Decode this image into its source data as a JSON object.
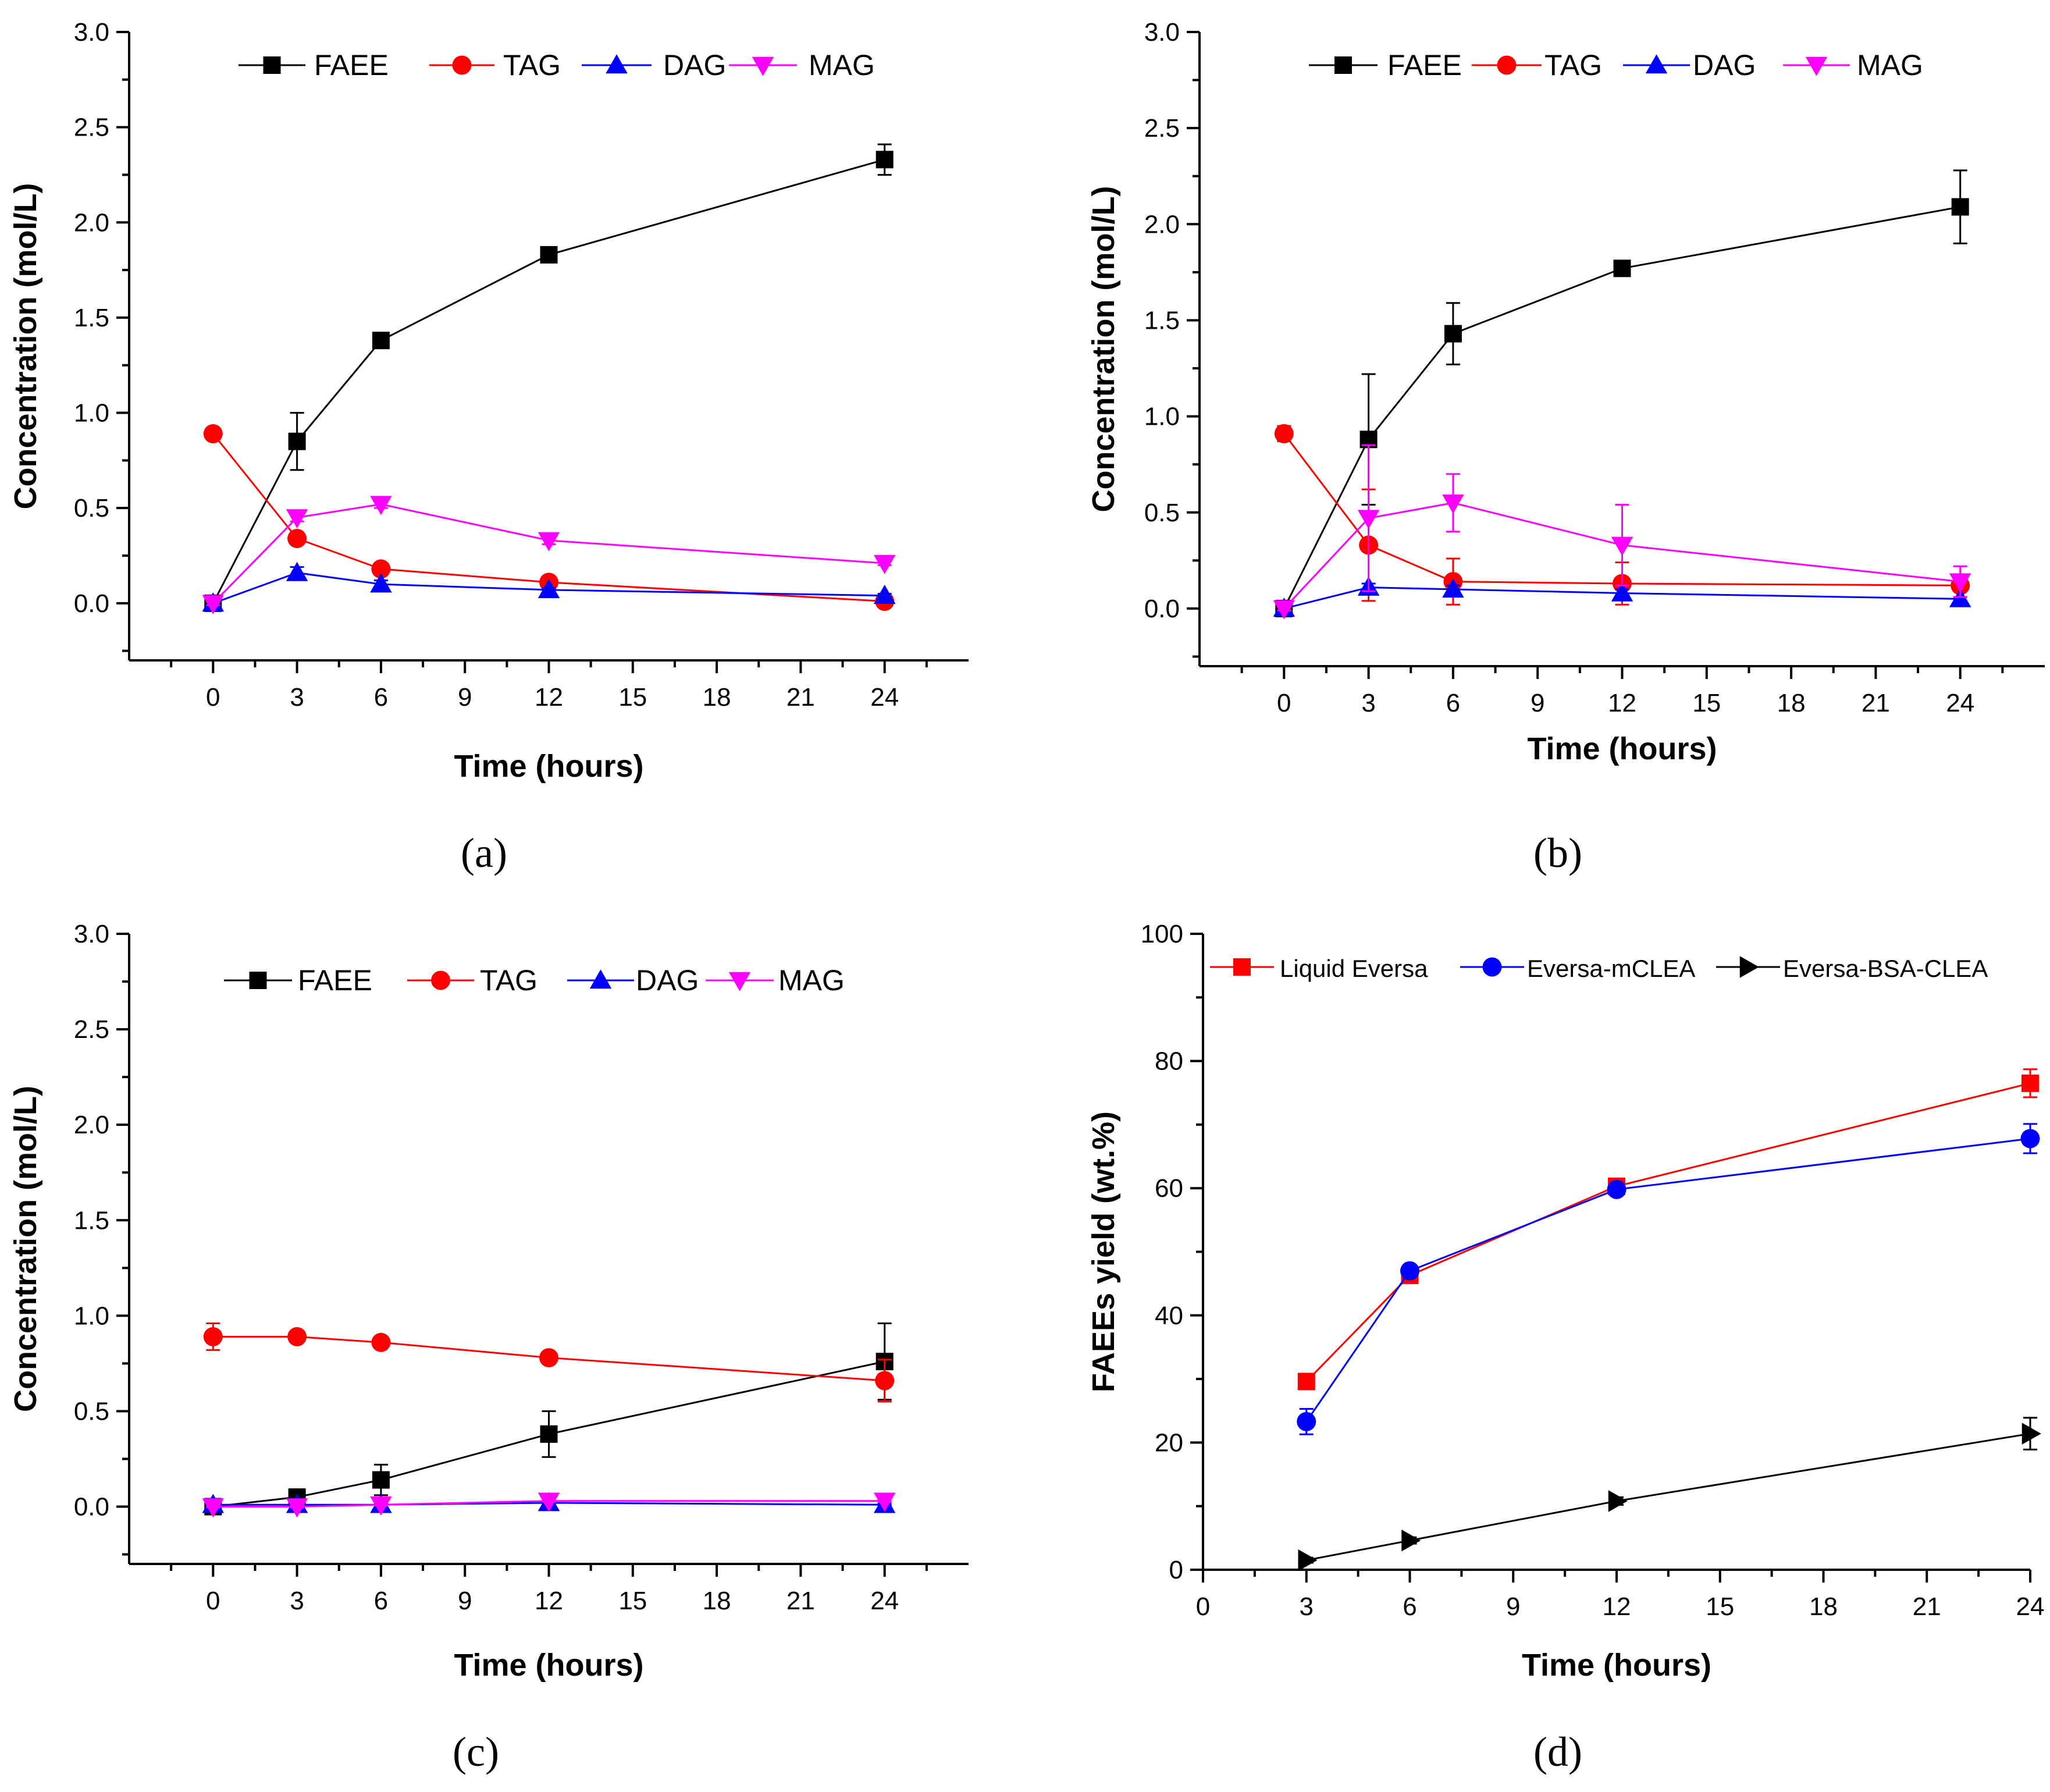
{
  "chart_data": [
    {
      "id": "a",
      "type": "line",
      "caption": "(a)",
      "xlabel": "Time (hours)",
      "ylabel": "Concentration (mol/L)",
      "xlim": [
        -3,
        27
      ],
      "ylim": [
        -0.3,
        3.0
      ],
      "xticks": [
        0,
        3,
        6,
        9,
        12,
        15,
        18,
        21,
        24
      ],
      "yticks": [
        0.0,
        0.5,
        1.0,
        1.5,
        2.0,
        2.5,
        3.0
      ],
      "ytick_labels": [
        "0.0",
        "0.5",
        "1.0",
        "1.5",
        "2.0",
        "2.5",
        "3.0"
      ],
      "x": [
        0,
        3,
        6,
        12,
        24
      ],
      "series": [
        {
          "name": "FAEE",
          "color": "#000000",
          "marker": "square",
          "values": [
            0.0,
            0.85,
            1.38,
            1.83,
            2.33
          ],
          "errors": [
            0.02,
            0.15,
            0.04,
            0.04,
            0.08
          ]
        },
        {
          "name": "TAG",
          "color": "#ff0000",
          "marker": "circle",
          "values": [
            0.89,
            0.34,
            0.18,
            0.11,
            0.01
          ],
          "errors": [
            0.02,
            0.02,
            0.02,
            0.02,
            0.01
          ]
        },
        {
          "name": "DAG",
          "color": "#0000ff",
          "marker": "triangle-up",
          "values": [
            0.0,
            0.16,
            0.1,
            0.07,
            0.04
          ],
          "errors": [
            0.01,
            0.03,
            0.02,
            0.01,
            0.01
          ]
        },
        {
          "name": "MAG",
          "color": "#ff00ff",
          "marker": "triangle-down",
          "values": [
            0.0,
            0.45,
            0.52,
            0.33,
            0.21
          ],
          "errors": [
            0.01,
            0.02,
            0.02,
            0.02,
            0.01
          ]
        }
      ]
    },
    {
      "id": "b",
      "type": "line",
      "caption": "(b)",
      "xlabel": "Time (hours)",
      "ylabel": "Concentration (mol/L)",
      "xlim": [
        -3,
        27
      ],
      "ylim": [
        -0.3,
        3.0
      ],
      "xticks": [
        0,
        3,
        6,
        9,
        12,
        15,
        18,
        21,
        24
      ],
      "yticks": [
        0.0,
        0.5,
        1.0,
        1.5,
        2.0,
        2.5,
        3.0
      ],
      "ytick_labels": [
        "0.0",
        "0.5",
        "1.0",
        "1.5",
        "2.0",
        "2.5",
        "3.0"
      ],
      "x": [
        0,
        3,
        6,
        12,
        24
      ],
      "series": [
        {
          "name": "FAEE",
          "color": "#000000",
          "marker": "square",
          "values": [
            0.0,
            0.88,
            1.43,
            1.77,
            2.09
          ],
          "errors": [
            0.02,
            0.34,
            0.16,
            0.01,
            0.19
          ]
        },
        {
          "name": "TAG",
          "color": "#ff0000",
          "marker": "circle",
          "values": [
            0.91,
            0.33,
            0.14,
            0.13,
            0.12
          ],
          "errors": [
            0.04,
            0.29,
            0.12,
            0.11,
            0.02
          ]
        },
        {
          "name": "DAG",
          "color": "#0000ff",
          "marker": "triangle-up",
          "values": [
            0.0,
            0.11,
            0.1,
            0.08,
            0.05
          ],
          "errors": [
            0.01,
            0.02,
            0.02,
            0.02,
            0.01
          ]
        },
        {
          "name": "MAG",
          "color": "#ff00ff",
          "marker": "triangle-down",
          "values": [
            0.0,
            0.47,
            0.55,
            0.33,
            0.14
          ],
          "errors": [
            0.01,
            0.38,
            0.15,
            0.21,
            0.08
          ]
        }
      ]
    },
    {
      "id": "c",
      "type": "line",
      "caption": "(c)",
      "xlabel": "Time (hours)",
      "ylabel": "Concentration (mol/L)",
      "xlim": [
        -3,
        27
      ],
      "ylim": [
        -0.3,
        3.0
      ],
      "xticks": [
        0,
        3,
        6,
        9,
        12,
        15,
        18,
        21,
        24
      ],
      "yticks": [
        0.0,
        0.5,
        1.0,
        1.5,
        2.0,
        2.5,
        3.0
      ],
      "ytick_labels": [
        "0.0",
        "0.5",
        "1.0",
        "1.5",
        "2.0",
        "2.5",
        "3.0"
      ],
      "x": [
        0,
        3,
        6,
        12,
        24
      ],
      "series": [
        {
          "name": "FAEE",
          "color": "#000000",
          "marker": "square",
          "values": [
            0.0,
            0.05,
            0.14,
            0.38,
            0.76
          ],
          "errors": [
            0.01,
            0.02,
            0.08,
            0.12,
            0.2
          ]
        },
        {
          "name": "TAG",
          "color": "#ff0000",
          "marker": "circle",
          "values": [
            0.89,
            0.89,
            0.86,
            0.78,
            0.66
          ],
          "errors": [
            0.07,
            0.02,
            0.03,
            0.03,
            0.11
          ]
        },
        {
          "name": "DAG",
          "color": "#0000ff",
          "marker": "triangle-up",
          "values": [
            0.01,
            0.01,
            0.01,
            0.02,
            0.01
          ],
          "errors": [
            0.005,
            0.005,
            0.005,
            0.005,
            0.005
          ]
        },
        {
          "name": "MAG",
          "color": "#ff00ff",
          "marker": "triangle-down",
          "values": [
            0.0,
            0.0,
            0.01,
            0.03,
            0.03
          ],
          "errors": [
            0.005,
            0.005,
            0.005,
            0.005,
            0.005
          ]
        }
      ]
    },
    {
      "id": "d",
      "type": "line",
      "caption": "(d)",
      "xlabel": "Time (hours)",
      "ylabel": "FAEEs yield (wt.%)",
      "xlim": [
        0,
        24
      ],
      "ylim": [
        0,
        100
      ],
      "xticks": [
        0,
        3,
        6,
        9,
        12,
        15,
        18,
        21,
        24
      ],
      "yticks": [
        0,
        20,
        40,
        60,
        80,
        100
      ],
      "ytick_labels": [
        "0",
        "20",
        "40",
        "60",
        "80",
        "100"
      ],
      "x": [
        3,
        6,
        12,
        24
      ],
      "series": [
        {
          "name": "Liquid Eversa",
          "color": "#ff0000",
          "marker": "square",
          "values": [
            29.6,
            46.3,
            60.3,
            76.5
          ],
          "errors": [
            0.8,
            1.2,
            0.6,
            2.2
          ]
        },
        {
          "name": "Eversa-mCLEA",
          "color": "#0000ff",
          "marker": "circle",
          "values": [
            23.3,
            47.0,
            59.8,
            67.8
          ],
          "errors": [
            2.0,
            0.8,
            0.6,
            2.3
          ]
        },
        {
          "name": "Eversa-BSA-CLEA",
          "color": "#000000",
          "marker": "triangle-right",
          "values": [
            1.5,
            4.6,
            10.8,
            21.4
          ],
          "errors": [
            0.4,
            0.5,
            0.6,
            2.5
          ]
        }
      ]
    }
  ]
}
